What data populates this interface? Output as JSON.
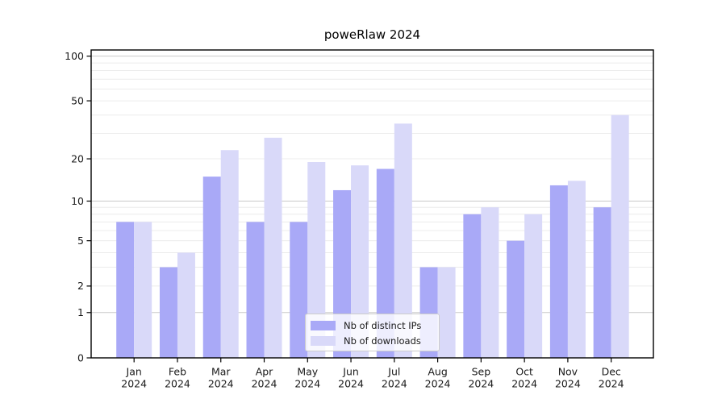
{
  "chart_data": {
    "type": "bar",
    "title": "poweRlaw 2024",
    "categories": [
      "Jan",
      "Feb",
      "Mar",
      "Apr",
      "May",
      "Jun",
      "Jul",
      "Aug",
      "Sep",
      "Oct",
      "Nov",
      "Dec"
    ],
    "x_tick_second_line": "2024",
    "series": [
      {
        "name": "Nb of distinct IPs",
        "color": "#a9a9f7",
        "values": [
          7,
          3,
          15,
          7,
          7,
          12,
          17,
          3,
          8,
          5,
          13,
          9
        ]
      },
      {
        "name": "Nb of downloads",
        "color": "#d9d9f9",
        "values": [
          7,
          4,
          23,
          28,
          19,
          18,
          35,
          3,
          9,
          8,
          14,
          40
        ]
      }
    ],
    "xlabel": "",
    "ylabel": "",
    "y_scale": "log1p",
    "y_ticks": [
      0,
      1,
      2,
      5,
      10,
      20,
      50,
      100
    ],
    "ylim": [
      0,
      110
    ],
    "grid": {
      "orientation": "horizontal",
      "major_values": [
        1,
        10,
        100
      ],
      "minor_values": [
        2,
        3,
        4,
        5,
        6,
        7,
        8,
        9,
        20,
        30,
        40,
        50,
        60,
        70,
        80,
        90
      ],
      "major_color": "#c9c9c9",
      "minor_color": "#ececec"
    },
    "legend": {
      "position": "lower-center-inside",
      "border_color": "#cccccc"
    },
    "axis_color": "#000000",
    "tick_label_color": "#1a1a1a",
    "background": "#ffffff"
  }
}
